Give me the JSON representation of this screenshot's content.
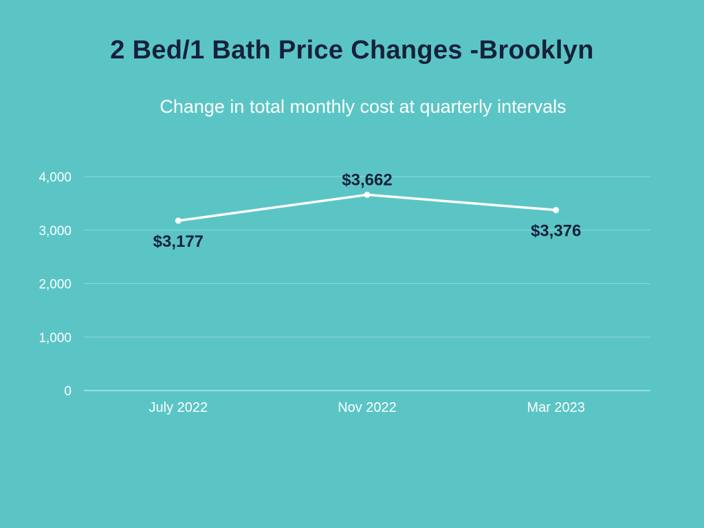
{
  "page": {
    "title": "2 Bed/1 Bath Price Changes -Brooklyn",
    "subtitle": "Change in total monthly cost at quarterly intervals"
  },
  "colors": {
    "background": "#5bc5c5",
    "title": "#15213a",
    "line": "#ffffff",
    "gridline": "#8fd8d8",
    "axis_text": "#ffffff",
    "data_label": "#15213a"
  },
  "chart_data": {
    "type": "line",
    "title": "2 Bed/1 Bath Price Changes -Brooklyn",
    "subtitle": "Change in total monthly cost at quarterly intervals",
    "xlabel": "",
    "ylabel": "",
    "categories": [
      "July 2022",
      "Nov 2022",
      "Mar 2023"
    ],
    "series": [
      {
        "values": [
          3177,
          3662,
          3376
        ],
        "data_labels": [
          "$3,177",
          "$3,662",
          "$3,376"
        ],
        "label_positions": [
          "below",
          "above",
          "below"
        ]
      }
    ],
    "ylim": [
      0,
      4000
    ],
    "yticks": [
      0,
      1000,
      2000,
      3000,
      4000
    ],
    "ytick_labels": [
      "0",
      "1,000",
      "2,000",
      "3,000",
      "4,000"
    ],
    "grid": true,
    "legend": "none"
  }
}
